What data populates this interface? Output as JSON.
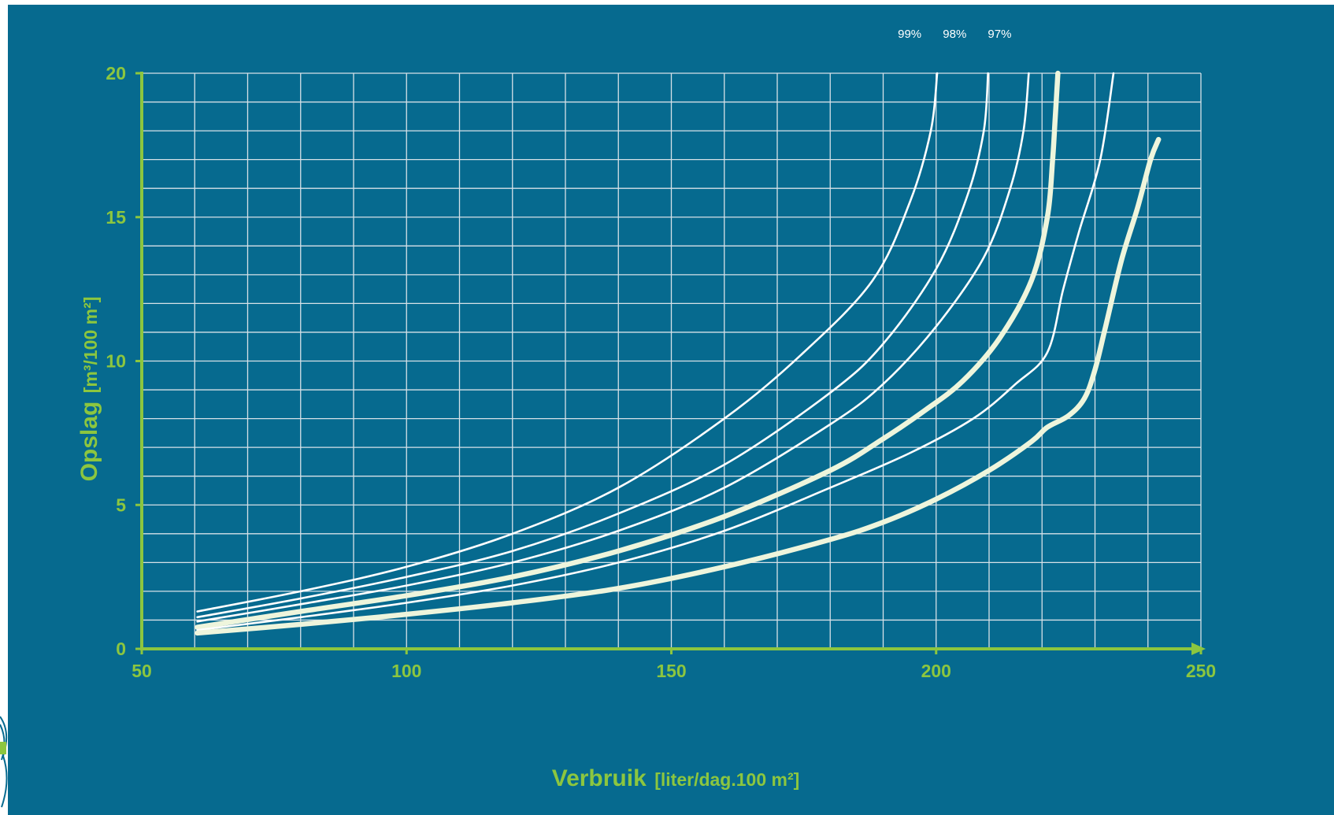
{
  "colors": {
    "background": "#066a8f",
    "axis": "#8cc63f",
    "grid": "#d6e1e8",
    "curve_thin": "#ffffff",
    "curve_thick": "#eef5dc",
    "percent_label": "#ffffff"
  },
  "chart_data": {
    "type": "line",
    "title": "",
    "xlabel": "Verbruik",
    "xlabel_unit": "[liter/dag.100 m²]",
    "ylabel": "Opslag",
    "ylabel_unit": "[m³/100 m²]",
    "xlim": [
      50,
      250
    ],
    "ylim": [
      0,
      20
    ],
    "x_ticks": [
      "50",
      "100",
      "150",
      "200",
      "250"
    ],
    "y_ticks": [
      "0",
      "5",
      "10",
      "15",
      "20"
    ],
    "x_minor_step": 10,
    "y_minor_step": 1,
    "grid": true,
    "top_labels": [
      {
        "text": "99%",
        "x": 195
      },
      {
        "text": "98%",
        "x": 203.5
      },
      {
        "text": "97%",
        "x": 212
      }
    ],
    "series": [
      {
        "weight": "thin",
        "points": [
          [
            60.5,
            1.3
          ],
          [
            80,
            2.0
          ],
          [
            100,
            2.85
          ],
          [
            120,
            4.0
          ],
          [
            140,
            5.6
          ],
          [
            160,
            8.0
          ],
          [
            175,
            10.3
          ],
          [
            188,
            12.8
          ],
          [
            195,
            15.5
          ],
          [
            199,
            18.0
          ],
          [
            200.2,
            20.0
          ]
        ]
      },
      {
        "weight": "thin",
        "points": [
          [
            60.5,
            1.1
          ],
          [
            80,
            1.75
          ],
          [
            100,
            2.5
          ],
          [
            120,
            3.4
          ],
          [
            140,
            4.7
          ],
          [
            160,
            6.4
          ],
          [
            180,
            8.9
          ],
          [
            190,
            10.6
          ],
          [
            200,
            13.2
          ],
          [
            206,
            15.8
          ],
          [
            209,
            18.0
          ],
          [
            209.8,
            20.0
          ]
        ]
      },
      {
        "weight": "thin",
        "points": [
          [
            60.5,
            0.95
          ],
          [
            80,
            1.55
          ],
          [
            100,
            2.2
          ],
          [
            120,
            3.0
          ],
          [
            140,
            4.1
          ],
          [
            160,
            5.6
          ],
          [
            180,
            7.8
          ],
          [
            190,
            9.2
          ],
          [
            200,
            11.2
          ],
          [
            209,
            13.6
          ],
          [
            214,
            16.0
          ],
          [
            216.5,
            18.0
          ],
          [
            217.5,
            20.0
          ]
        ]
      },
      {
        "weight": "thick",
        "points": [
          [
            60.5,
            0.75
          ],
          [
            80,
            1.3
          ],
          [
            100,
            1.85
          ],
          [
            120,
            2.5
          ],
          [
            140,
            3.4
          ],
          [
            160,
            4.6
          ],
          [
            180,
            6.2
          ],
          [
            190,
            7.3
          ],
          [
            198,
            8.3
          ],
          [
            205,
            9.3
          ],
          [
            212,
            10.8
          ],
          [
            218,
            12.8
          ],
          [
            221,
            15.0
          ],
          [
            222,
            17.0
          ],
          [
            222.5,
            18.5
          ],
          [
            223,
            20.0
          ]
        ]
      },
      {
        "weight": "thin",
        "points": [
          [
            60.5,
            0.65
          ],
          [
            80,
            1.1
          ],
          [
            100,
            1.6
          ],
          [
            120,
            2.2
          ],
          [
            140,
            3.0
          ],
          [
            160,
            4.1
          ],
          [
            180,
            5.6
          ],
          [
            195,
            6.8
          ],
          [
            207,
            8.0
          ],
          [
            215,
            9.2
          ],
          [
            221,
            10.3
          ],
          [
            224,
            12.5
          ],
          [
            227,
            14.5
          ],
          [
            231,
            17.0
          ],
          [
            233.5,
            20.0
          ]
        ]
      },
      {
        "weight": "thick",
        "points": [
          [
            60.5,
            0.55
          ],
          [
            80,
            0.85
          ],
          [
            100,
            1.2
          ],
          [
            120,
            1.6
          ],
          [
            140,
            2.1
          ],
          [
            160,
            2.85
          ],
          [
            180,
            3.8
          ],
          [
            190,
            4.4
          ],
          [
            200,
            5.2
          ],
          [
            210,
            6.2
          ],
          [
            218,
            7.2
          ],
          [
            221,
            7.7
          ],
          [
            225,
            8.1
          ],
          [
            228,
            8.7
          ],
          [
            230,
            9.7
          ],
          [
            232,
            11.2
          ],
          [
            235,
            13.5
          ],
          [
            238,
            15.3
          ],
          [
            240.5,
            17.0
          ],
          [
            242,
            17.7
          ]
        ]
      }
    ]
  }
}
